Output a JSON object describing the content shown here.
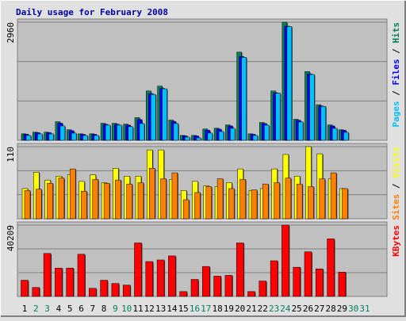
{
  "chart_data": [
    {
      "type": "bar",
      "title": "Daily usage for February 2008",
      "legend_separator": " / ",
      "ylim": [
        0,
        2960
      ],
      "yticks": [
        2960
      ],
      "grid": true,
      "series": [
        {
          "name": "Hits",
          "color": "#00805c",
          "values": [
            162,
            203,
            203,
            466,
            264,
            162,
            162,
            426,
            426,
            405,
            568,
            1236,
            1358,
            507,
            122,
            122,
            284,
            304,
            385,
            2209,
            162,
            446,
            1236,
            2960,
            527,
            1723,
            892,
            385,
            264,
            null,
            null
          ]
        },
        {
          "name": "Files",
          "color": "#0000ff",
          "values": [
            150,
            190,
            190,
            430,
            240,
            150,
            150,
            400,
            400,
            380,
            520,
            1170,
            1300,
            470,
            110,
            110,
            250,
            280,
            360,
            2100,
            150,
            420,
            1190,
            2860,
            500,
            1660,
            860,
            360,
            250,
            null,
            null
          ]
        },
        {
          "name": "Pages",
          "color": "#00c0ff",
          "values": [
            120,
            160,
            160,
            360,
            180,
            120,
            120,
            380,
            380,
            340,
            420,
            1150,
            1290,
            420,
            80,
            60,
            180,
            220,
            300,
            2080,
            120,
            380,
            1180,
            2850,
            460,
            1650,
            850,
            300,
            200,
            null,
            null
          ]
        }
      ]
    },
    {
      "type": "bar",
      "ylim": [
        0,
        110
      ],
      "yticks": [
        110
      ],
      "grid": true,
      "series": [
        {
          "name": "Visits",
          "color": "#ffff00",
          "values": [
            46,
            71,
            59,
            65,
            67,
            57,
            67,
            55,
            77,
            65,
            65,
            105,
            105,
            60,
            43,
            57,
            50,
            49,
            55,
            76,
            43,
            46,
            76,
            98,
            65,
            110,
            99,
            61,
            46,
            null,
            null
          ]
        },
        {
          "name": "Sites",
          "color": "#ff8000",
          "values": [
            43,
            45,
            54,
            62,
            76,
            42,
            60,
            54,
            59,
            53,
            55,
            77,
            61,
            70,
            29,
            40,
            49,
            61,
            46,
            60,
            44,
            53,
            55,
            62,
            53,
            49,
            61,
            70,
            46,
            null,
            null
          ]
        }
      ]
    },
    {
      "type": "bar",
      "ylim": [
        0,
        40209
      ],
      "yticks": [
        40209
      ],
      "grid": true,
      "categories": [
        "1",
        "2",
        "3",
        "4",
        "5",
        "6",
        "7",
        "8",
        "9",
        "10",
        "11",
        "12",
        "13",
        "14",
        "15",
        "16",
        "17",
        "18",
        "19",
        "20",
        "21",
        "22",
        "23",
        "24",
        "25",
        "26",
        "27",
        "28",
        "29",
        "30",
        "31"
      ],
      "category_colors": [
        "#000000",
        "#00805c",
        "#00805c",
        "#000000",
        "#000000",
        "#000000",
        "#000000",
        "#000000",
        "#00805c",
        "#00805c",
        "#000000",
        "#000000",
        "#000000",
        "#000000",
        "#000000",
        "#00805c",
        "#00805c",
        "#000000",
        "#000000",
        "#000000",
        "#000000",
        "#000000",
        "#00805c",
        "#00805c",
        "#000000",
        "#000000",
        "#000000",
        "#000000",
        "#000000",
        "#00805c",
        "#00805c"
      ],
      "series": [
        {
          "name": "KBytes",
          "color": "#ff0000",
          "values": [
            9140,
            5027,
            24221,
            15995,
            15995,
            23764,
            4570,
            9140,
            7312,
            6398,
            30158,
            19648,
            20561,
            22848,
            2742,
            9597,
            16909,
            11425,
            11882,
            30158,
            2742,
            8683,
            20104,
            40209,
            16452,
            25135,
            15538,
            32443,
            13709,
            null,
            null
          ]
        }
      ]
    }
  ]
}
